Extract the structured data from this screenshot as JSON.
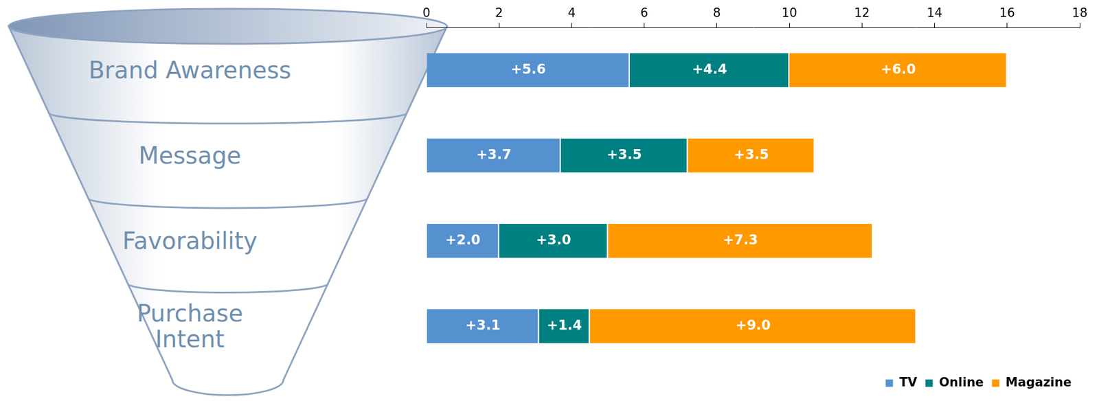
{
  "chart_data": {
    "type": "bar",
    "orientation": "horizontal",
    "stacked": true,
    "categories": [
      "Brand Awareness",
      "Message",
      "Favorability",
      "Purchase Intent"
    ],
    "series": [
      {
        "name": "TV",
        "color": "#5591cf",
        "values": [
          5.6,
          3.7,
          2.0,
          3.1
        ],
        "value_labels": [
          "+5.6",
          "+3.7",
          "+2.0",
          "+3.1"
        ]
      },
      {
        "name": "Online",
        "color": "#008080",
        "values": [
          4.4,
          3.5,
          3.0,
          1.4
        ],
        "value_labels": [
          "+4.4",
          "+3.5",
          "+3.0",
          "+1.4"
        ]
      },
      {
        "name": "Magazine",
        "color": "#ff9900",
        "values": [
          6.0,
          3.5,
          7.3,
          9.0
        ],
        "value_labels": [
          "+6.0",
          "+3.5",
          "+7.3",
          "+9.0"
        ]
      }
    ],
    "xlim": [
      0,
      18
    ],
    "xticks": [
      0,
      2,
      4,
      6,
      8,
      10,
      12,
      14,
      16,
      18
    ],
    "grid": false,
    "legend": "bottom right",
    "data_labels": true,
    "tick_labels": "x"
  }
}
